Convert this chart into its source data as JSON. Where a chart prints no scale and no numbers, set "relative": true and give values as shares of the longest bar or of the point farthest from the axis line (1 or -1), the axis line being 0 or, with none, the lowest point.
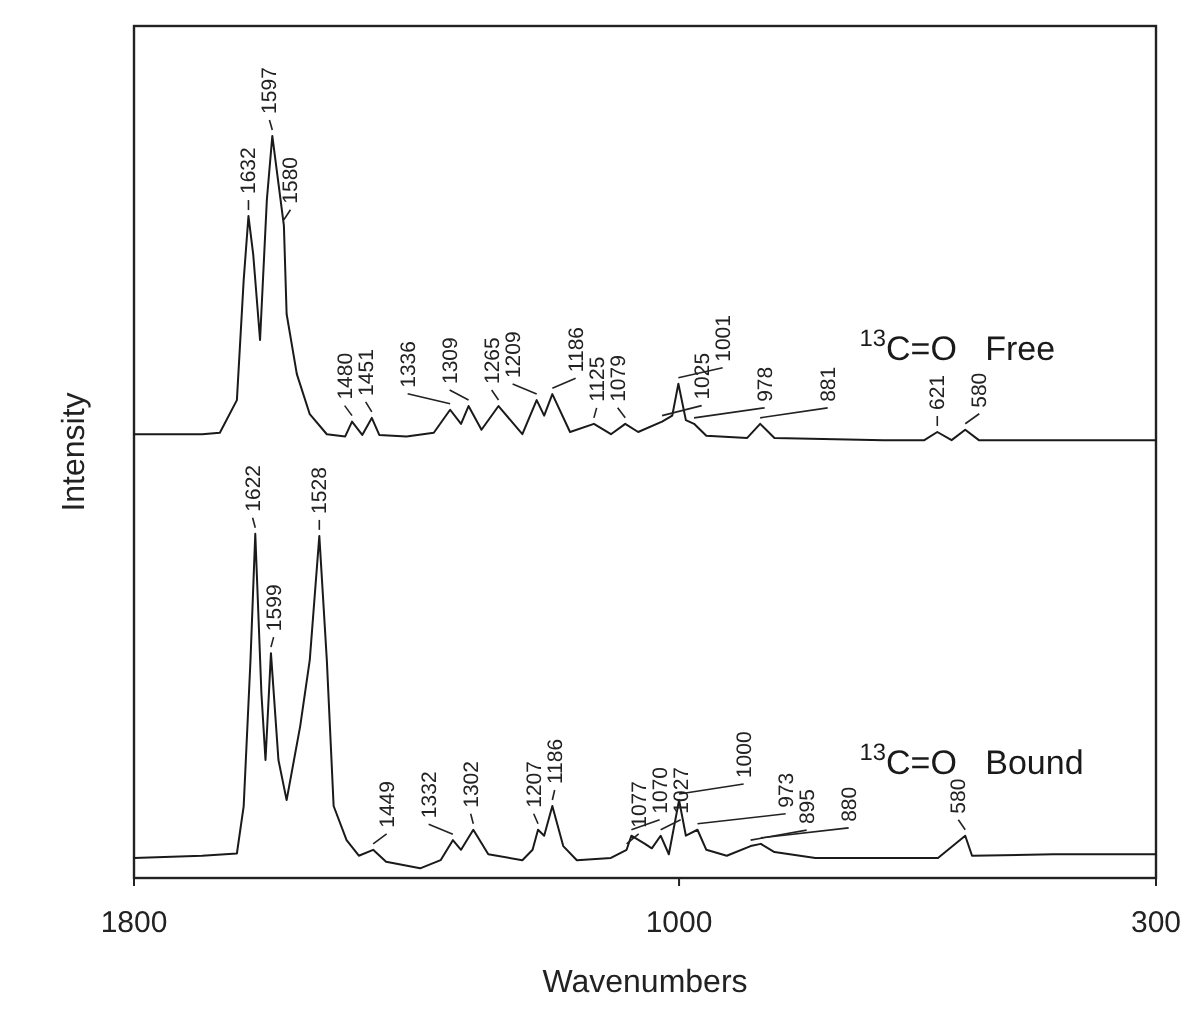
{
  "chart_data": {
    "type": "line",
    "relative": true,
    "xlabel": "Wavenumbers",
    "ylabel": "Intensity",
    "xlim": [
      1800,
      300
    ],
    "xticks": [
      1800,
      1000,
      300
    ],
    "grid": false,
    "line_style": "solid",
    "series": [
      {
        "name": "$^{13}$C=O   Free",
        "color": "#1a1a1a",
        "x": [
          1800,
          1700,
          1674,
          1649,
          1639,
          1632,
          1625,
          1615,
          1605,
          1597,
          1580,
          1576,
          1561,
          1542,
          1517,
          1490,
          1480,
          1465,
          1451,
          1440,
          1400,
          1360,
          1336,
          1320,
          1309,
          1290,
          1265,
          1230,
          1209,
          1198,
          1186,
          1160,
          1125,
          1100,
          1079,
          1060,
          1025,
          1010,
          1001,
          990,
          978,
          960,
          900,
          881,
          860,
          700,
          640,
          621,
          600,
          580,
          560,
          450,
          300
        ],
        "values": [
          0.598,
          0.598,
          0.6,
          0.644,
          0.806,
          0.892,
          0.84,
          0.725,
          0.914,
          1.0,
          0.879,
          0.76,
          0.679,
          0.625,
          0.598,
          0.595,
          0.615,
          0.597,
          0.62,
          0.597,
          0.595,
          0.6,
          0.631,
          0.612,
          0.636,
          0.604,
          0.636,
          0.598,
          0.644,
          0.623,
          0.652,
          0.601,
          0.612,
          0.598,
          0.612,
          0.601,
          0.615,
          0.623,
          0.666,
          0.617,
          0.612,
          0.596,
          0.593,
          0.612,
          0.593,
          0.59,
          0.59,
          0.601,
          0.59,
          0.604,
          0.59,
          0.59,
          0.59
        ]
      },
      {
        "name": "$^{13}$C=O   Bound",
        "color": "#1a1a1a",
        "x": [
          1800,
          1700,
          1649,
          1639,
          1629,
          1622,
          1613,
          1607,
          1599,
          1588,
          1576,
          1556,
          1542,
          1528,
          1517,
          1507,
          1488,
          1470,
          1449,
          1430,
          1380,
          1350,
          1332,
          1320,
          1302,
          1280,
          1230,
          1215,
          1207,
          1198,
          1186,
          1170,
          1150,
          1100,
          1077,
          1070,
          1050,
          1040,
          1027,
          1015,
          1000,
          990,
          973,
          960,
          930,
          895,
          880,
          860,
          800,
          620,
          580,
          570,
          450,
          300
        ],
        "values": [
          0.027,
          0.03,
          0.033,
          0.097,
          0.294,
          0.464,
          0.249,
          0.159,
          0.303,
          0.159,
          0.105,
          0.205,
          0.294,
          0.461,
          0.294,
          0.097,
          0.051,
          0.03,
          0.038,
          0.022,
          0.013,
          0.024,
          0.051,
          0.038,
          0.065,
          0.032,
          0.024,
          0.038,
          0.065,
          0.057,
          0.097,
          0.043,
          0.024,
          0.027,
          0.038,
          0.057,
          0.046,
          0.04,
          0.057,
          0.032,
          0.105,
          0.057,
          0.065,
          0.038,
          0.03,
          0.043,
          0.046,
          0.035,
          0.027,
          0.027,
          0.057,
          0.03,
          0.032,
          0.032
        ]
      }
    ],
    "annotations": [
      {
        "text": "1632",
        "x": 1632,
        "y": 0.892
      },
      {
        "text": "1597",
        "x": 1597,
        "y": 1.0
      },
      {
        "text": "1580",
        "x": 1580,
        "y": 0.879
      },
      {
        "text": "1480",
        "x": 1480,
        "y": 0.615
      },
      {
        "text": "1451",
        "x": 1451,
        "y": 0.62
      },
      {
        "text": "1336",
        "x": 1336,
        "y": 0.631
      },
      {
        "text": "1309",
        "x": 1309,
        "y": 0.636
      },
      {
        "text": "1265",
        "x": 1265,
        "y": 0.636
      },
      {
        "text": "1209",
        "x": 1209,
        "y": 0.644
      },
      {
        "text": "1186",
        "x": 1186,
        "y": 0.652
      },
      {
        "text": "1125",
        "x": 1125,
        "y": 0.612
      },
      {
        "text": "1079",
        "x": 1079,
        "y": 0.612
      },
      {
        "text": "1025",
        "x": 1025,
        "y": 0.615
      },
      {
        "text": "1001",
        "x": 1001,
        "y": 0.666
      },
      {
        "text": "978",
        "x": 978,
        "y": 0.612
      },
      {
        "text": "881",
        "x": 881,
        "y": 0.612
      },
      {
        "text": "621",
        "x": 621,
        "y": 0.601
      },
      {
        "text": "580",
        "x": 580,
        "y": 0.604
      },
      {
        "text": "1622",
        "x": 1622,
        "y": 0.464
      },
      {
        "text": "1599",
        "x": 1599,
        "y": 0.303
      },
      {
        "text": "1528",
        "x": 1528,
        "y": 0.461
      },
      {
        "text": "1449",
        "x": 1449,
        "y": 0.038
      },
      {
        "text": "1332",
        "x": 1332,
        "y": 0.051
      },
      {
        "text": "1302",
        "x": 1302,
        "y": 0.065
      },
      {
        "text": "1207",
        "x": 1207,
        "y": 0.065
      },
      {
        "text": "1186",
        "x": 1186,
        "y": 0.097
      },
      {
        "text": "1077",
        "x": 1077,
        "y": 0.038
      },
      {
        "text": "1070",
        "x": 1070,
        "y": 0.057
      },
      {
        "text": "1027",
        "x": 1027,
        "y": 0.057
      },
      {
        "text": "1000",
        "x": 1000,
        "y": 0.105
      },
      {
        "text": "973",
        "x": 973,
        "y": 0.065
      },
      {
        "text": "895",
        "x": 895,
        "y": 0.043
      },
      {
        "text": "880",
        "x": 880,
        "y": 0.046
      },
      {
        "text": "580",
        "x": 580,
        "y": 0.057
      }
    ]
  }
}
